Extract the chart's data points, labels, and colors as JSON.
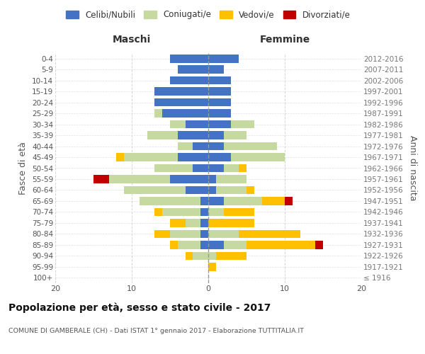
{
  "age_groups": [
    "100+",
    "95-99",
    "90-94",
    "85-89",
    "80-84",
    "75-79",
    "70-74",
    "65-69",
    "60-64",
    "55-59",
    "50-54",
    "45-49",
    "40-44",
    "35-39",
    "30-34",
    "25-29",
    "20-24",
    "15-19",
    "10-14",
    "5-9",
    "0-4"
  ],
  "birth_years": [
    "≤ 1916",
    "1917-1921",
    "1922-1926",
    "1927-1931",
    "1932-1936",
    "1937-1941",
    "1942-1946",
    "1947-1951",
    "1952-1956",
    "1957-1961",
    "1962-1966",
    "1967-1971",
    "1972-1976",
    "1977-1981",
    "1982-1986",
    "1987-1991",
    "1992-1996",
    "1997-2001",
    "2002-2006",
    "2007-2011",
    "2012-2016"
  ],
  "maschi": {
    "celibi": [
      0,
      0,
      0,
      1,
      1,
      1,
      1,
      1,
      3,
      5,
      2,
      4,
      2,
      4,
      3,
      6,
      7,
      7,
      5,
      4,
      5
    ],
    "coniugati": [
      0,
      0,
      2,
      3,
      4,
      2,
      5,
      8,
      8,
      8,
      5,
      7,
      2,
      4,
      2,
      1,
      0,
      0,
      0,
      0,
      0
    ],
    "vedovi": [
      0,
      0,
      1,
      1,
      2,
      2,
      1,
      0,
      0,
      0,
      0,
      1,
      0,
      0,
      0,
      0,
      0,
      0,
      0,
      0,
      0
    ],
    "divorziati": [
      0,
      0,
      0,
      0,
      0,
      0,
      0,
      0,
      0,
      2,
      0,
      0,
      0,
      0,
      0,
      0,
      0,
      0,
      0,
      0,
      0
    ]
  },
  "femmine": {
    "nubili": [
      0,
      0,
      0,
      2,
      0,
      0,
      0,
      2,
      1,
      1,
      2,
      3,
      2,
      2,
      3,
      3,
      3,
      3,
      3,
      2,
      4
    ],
    "coniugate": [
      0,
      0,
      1,
      3,
      4,
      0,
      2,
      5,
      4,
      4,
      2,
      7,
      7,
      3,
      3,
      0,
      0,
      0,
      0,
      0,
      0
    ],
    "vedove": [
      0,
      1,
      4,
      9,
      8,
      6,
      4,
      3,
      1,
      0,
      1,
      0,
      0,
      0,
      0,
      0,
      0,
      0,
      0,
      0,
      0
    ],
    "divorziate": [
      0,
      0,
      0,
      1,
      0,
      0,
      0,
      1,
      0,
      0,
      0,
      0,
      0,
      0,
      0,
      0,
      0,
      0,
      0,
      0,
      0
    ]
  },
  "colors": {
    "celibi_nubili": "#4472c4",
    "coniugati": "#c5d9a0",
    "vedovi": "#ffc000",
    "divorziati": "#c00000"
  },
  "xlim": 20,
  "title": "Popolazione per età, sesso e stato civile - 2017",
  "subtitle": "COMUNE DI GAMBERALE (CH) - Dati ISTAT 1° gennaio 2017 - Elaborazione TUTTITALIA.IT",
  "ylabel_left": "Fasce di età",
  "ylabel_right": "Anni di nascita",
  "xlabel_maschi": "Maschi",
  "xlabel_femmine": "Femmine",
  "legend_labels": [
    "Celibi/Nubili",
    "Coniugati/e",
    "Vedovi/e",
    "Divorziati/e"
  ],
  "background_color": "#ffffff",
  "grid_color": "#cccccc"
}
